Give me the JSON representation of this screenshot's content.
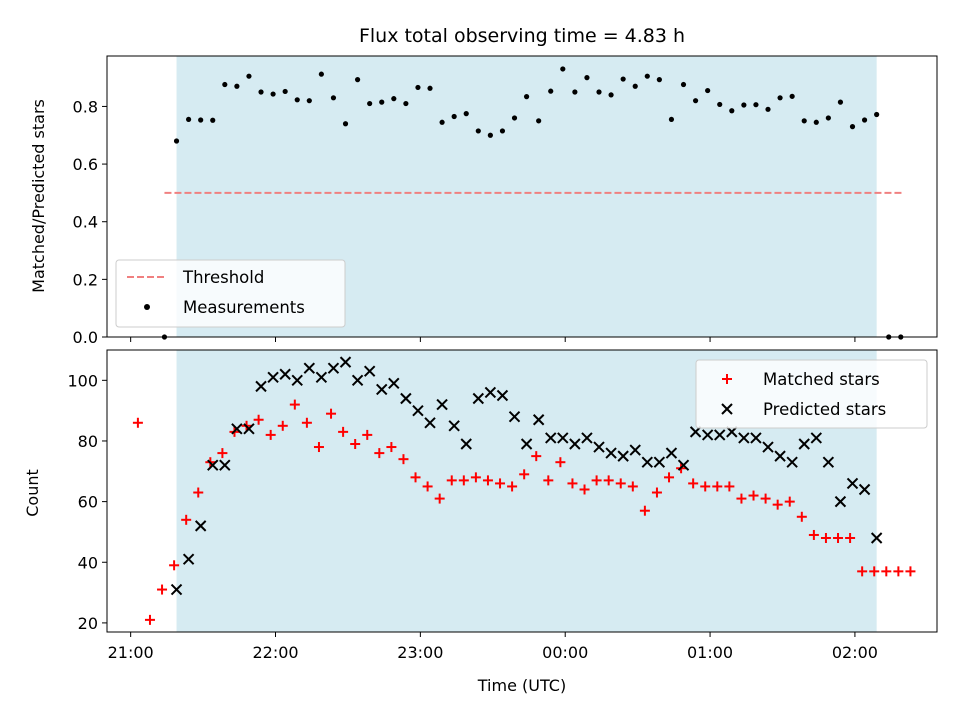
{
  "chart_data": {
    "type": "scatter",
    "title": "Flux total observing time = 4.83 h",
    "xlabel": "Time (UTC)",
    "x_ticks": [
      {
        "t": 0,
        "label": "21:00"
      },
      {
        "t": 60,
        "label": "22:00"
      },
      {
        "t": 120,
        "label": "23:00"
      },
      {
        "t": 180,
        "label": "00:00"
      },
      {
        "t": 240,
        "label": "01:00"
      },
      {
        "t": 300,
        "label": "02:00"
      }
    ],
    "shaded_span": {
      "x": [
        19,
        309
      ],
      "color": "#add8e6"
    },
    "top": {
      "ylabel": "Matched/Predicted stars",
      "ylim": [
        0,
        0.975
      ],
      "y_ticks": [
        0.0,
        0.2,
        0.4,
        0.6,
        0.8
      ],
      "legend_position": "lower-left",
      "threshold": {
        "name": "Threshold",
        "value": 0.5,
        "x": [
          14,
          320
        ],
        "color": "#f08080"
      },
      "measurements": {
        "name": "Measurements",
        "color": "#000000",
        "x": [
          14,
          19,
          24,
          29,
          34,
          39,
          44,
          49,
          54,
          59,
          64,
          69,
          74,
          79,
          84,
          89,
          94,
          99,
          104,
          109,
          114,
          119,
          124,
          129,
          134,
          139,
          144,
          149,
          154,
          159,
          164,
          169,
          174,
          179,
          184,
          189,
          194,
          199,
          204,
          209,
          214,
          219,
          224,
          229,
          234,
          239,
          244,
          249,
          254,
          259,
          264,
          269,
          274,
          279,
          284,
          289,
          294,
          299,
          304,
          309,
          314,
          319
        ],
        "y": [
          0.0,
          0.68,
          0.755,
          0.753,
          0.752,
          0.876,
          0.87,
          0.905,
          0.85,
          0.843,
          0.852,
          0.823,
          0.82,
          0.912,
          0.83,
          0.74,
          0.893,
          0.81,
          0.815,
          0.827,
          0.81,
          0.866,
          0.863,
          0.745,
          0.765,
          0.775,
          0.715,
          0.7,
          0.715,
          0.76,
          0.834,
          0.75,
          0.853,
          0.93,
          0.85,
          0.9,
          0.85,
          0.84,
          0.895,
          0.87,
          0.905,
          0.893,
          0.755,
          0.876,
          0.82,
          0.855,
          0.807,
          0.785,
          0.805,
          0.806,
          0.79,
          0.83,
          0.835,
          0.75,
          0.745,
          0.76,
          0.815,
          0.73,
          0.753,
          0.772,
          0.0,
          0.0
        ]
      }
    },
    "bottom": {
      "ylabel": "Count",
      "ylim": [
        17,
        110
      ],
      "y_ticks": [
        20,
        40,
        60,
        80,
        100
      ],
      "legend_position": "upper-right",
      "series": [
        {
          "name": "Matched stars",
          "marker": "+",
          "color": "#ff0000",
          "x": [
            3,
            8,
            13,
            18,
            23,
            28,
            33,
            38,
            43,
            48,
            53,
            58,
            63,
            68,
            73,
            78,
            83,
            88,
            93,
            98,
            103,
            108,
            113,
            118,
            123,
            128,
            133,
            138,
            143,
            148,
            153,
            158,
            163,
            168,
            173,
            178,
            183,
            188,
            193,
            198,
            203,
            208,
            213,
            218,
            223,
            228,
            233,
            238,
            243,
            248,
            253,
            258,
            263,
            268,
            273,
            278,
            283,
            288,
            293,
            298,
            303,
            308,
            313,
            318,
            323
          ],
          "y": [
            86,
            21,
            31,
            39,
            54,
            63,
            73,
            76,
            83,
            85,
            87,
            82,
            85,
            92,
            86,
            78,
            89,
            83,
            79,
            82,
            76,
            78,
            74,
            68,
            65,
            61,
            67,
            67,
            68,
            67,
            66,
            65,
            69,
            75,
            67,
            73,
            66,
            64,
            67,
            67,
            66,
            65,
            57,
            63,
            68,
            71,
            66,
            65,
            65,
            65,
            61,
            62,
            61,
            59,
            60,
            55,
            49,
            48,
            48,
            48,
            37,
            37,
            37,
            37,
            37
          ]
        },
        {
          "name": "Predicted stars",
          "marker": "x",
          "color": "#000000",
          "x": [
            19,
            24,
            29,
            34,
            39,
            44,
            49,
            54,
            59,
            64,
            69,
            74,
            79,
            84,
            89,
            94,
            99,
            104,
            109,
            114,
            119,
            124,
            129,
            134,
            139,
            144,
            149,
            154,
            159,
            164,
            169,
            174,
            179,
            184,
            189,
            194,
            199,
            204,
            209,
            214,
            219,
            224,
            229,
            234,
            239,
            244,
            249,
            254,
            259,
            264,
            269,
            274,
            279,
            284,
            289,
            294,
            299,
            304,
            309
          ],
          "y": [
            31,
            41,
            52,
            72,
            72,
            84,
            84,
            98,
            101,
            102,
            100,
            104,
            101,
            104,
            106,
            100,
            103,
            97,
            99,
            94,
            90,
            86,
            92,
            85,
            79,
            94,
            96,
            95,
            88,
            79,
            87,
            81,
            81,
            79,
            81,
            78,
            76,
            75,
            77,
            73,
            73,
            76,
            72,
            83,
            82,
            82,
            83,
            81,
            81,
            78,
            75,
            73,
            79,
            81,
            73,
            60,
            66,
            64,
            48
          ]
        }
      ]
    }
  }
}
